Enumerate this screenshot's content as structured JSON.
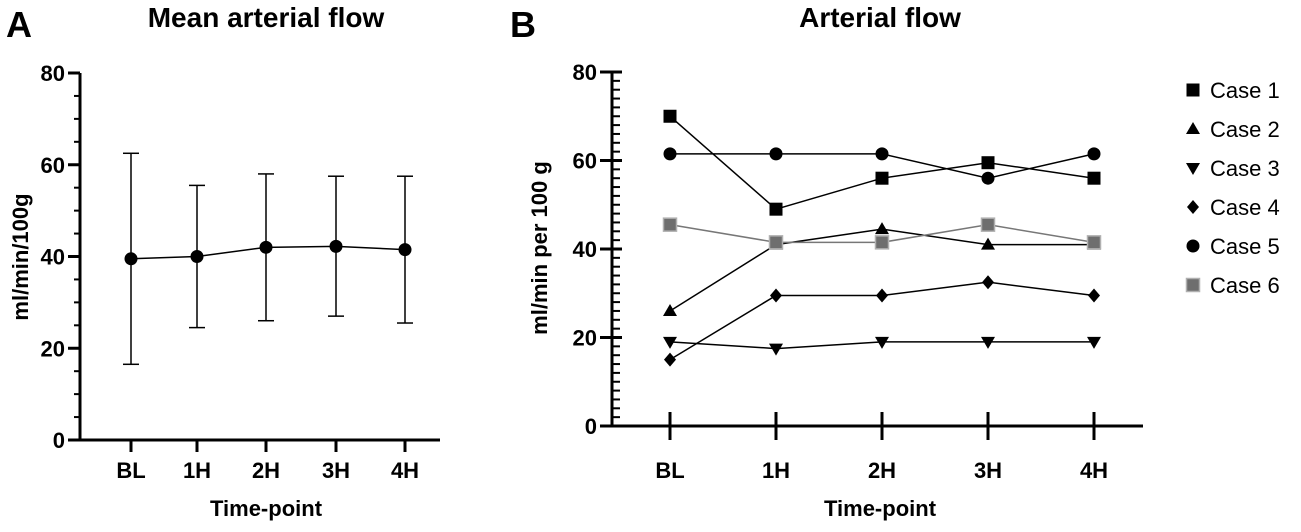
{
  "panels": [
    {
      "letter": "A"
    },
    {
      "letter": "B"
    }
  ],
  "chart_data": [
    {
      "type": "line",
      "panel": "A",
      "title": "Mean arterial flow",
      "xlabel": "Time-point",
      "ylabel": "ml/min/100g",
      "categories": [
        "BL",
        "1H",
        "2H",
        "3H",
        "4H"
      ],
      "ylim": [
        0,
        80
      ],
      "yticks": [
        0,
        20,
        40,
        60,
        80
      ],
      "series": [
        {
          "name": "Mean",
          "marker": "circle",
          "values": [
            39.5,
            40,
            42,
            42.2,
            41.5
          ],
          "error_upper": [
            62.5,
            55.5,
            58,
            57.5,
            57.5
          ],
          "error_lower": [
            16.5,
            24.5,
            26,
            27,
            25.5
          ]
        }
      ]
    },
    {
      "type": "line",
      "panel": "B",
      "title": "Arterial flow",
      "xlabel": "Time-point",
      "ylabel": "ml/min per 100 g",
      "categories": [
        "BL",
        "1H",
        "2H",
        "3H",
        "4H"
      ],
      "ylim": [
        0,
        80
      ],
      "yticks": [
        0,
        20,
        40,
        60,
        80
      ],
      "legend_position": "right",
      "series": [
        {
          "name": "Case 1",
          "marker": "square",
          "color": "#000000",
          "values": [
            70,
            49,
            56,
            59.5,
            56
          ]
        },
        {
          "name": "Case 2",
          "marker": "triangle-up",
          "color": "#000000",
          "values": [
            26,
            41,
            44.5,
            41,
            41
          ]
        },
        {
          "name": "Case 3",
          "marker": "triangle-down",
          "color": "#000000",
          "values": [
            19,
            17.5,
            19,
            19,
            19
          ]
        },
        {
          "name": "Case 4",
          "marker": "diamond",
          "color": "#000000",
          "values": [
            15,
            29.5,
            29.5,
            32.5,
            29.5
          ]
        },
        {
          "name": "Case 5",
          "marker": "circle",
          "color": "#000000",
          "values": [
            61.5,
            61.5,
            61.5,
            56,
            61.5
          ]
        },
        {
          "name": "Case 6",
          "marker": "square",
          "color": "#6e6e6e",
          "values": [
            45.5,
            41.5,
            41.5,
            45.5,
            41.5
          ]
        }
      ]
    }
  ]
}
